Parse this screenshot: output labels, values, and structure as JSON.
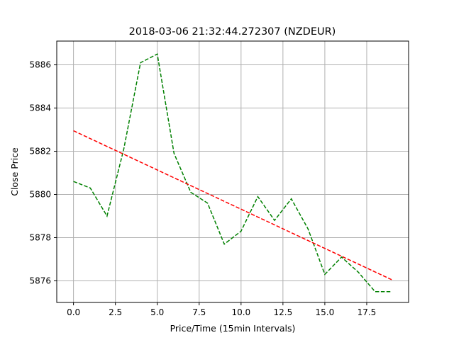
{
  "chart_data": {
    "type": "line",
    "title": "2018-03-06 21:32:44.272307 (NZDEUR)",
    "xlabel": "Price/Time (15min Intervals)",
    "ylabel": "Close Price",
    "xlim": [
      -1,
      20
    ],
    "ylim": [
      5875.0,
      5887.1
    ],
    "xticks": [
      "0.0",
      "2.5",
      "5.0",
      "7.5",
      "10.0",
      "12.5",
      "15.0",
      "17.5"
    ],
    "yticks": [
      "5876",
      "5878",
      "5880",
      "5882",
      "5884",
      "5886"
    ],
    "grid": true,
    "series": [
      {
        "color": "#008000",
        "style": "dashed",
        "x": [
          0,
          1,
          2,
          3,
          4,
          5,
          6,
          7,
          8,
          9,
          10,
          11,
          12,
          13,
          14,
          15,
          16,
          17,
          18,
          19
        ],
        "values": [
          5880.6,
          5880.3,
          5879.0,
          5882.1,
          5886.1,
          5886.5,
          5881.9,
          5880.1,
          5879.6,
          5877.7,
          5878.3,
          5879.9,
          5878.8,
          5879.8,
          5878.4,
          5876.3,
          5877.1,
          5876.4,
          5875.5,
          5875.5
        ]
      },
      {
        "color": "#ff0000",
        "style": "dashed",
        "x": [
          0,
          19
        ],
        "values": [
          5882.95,
          5876.05
        ]
      }
    ]
  }
}
